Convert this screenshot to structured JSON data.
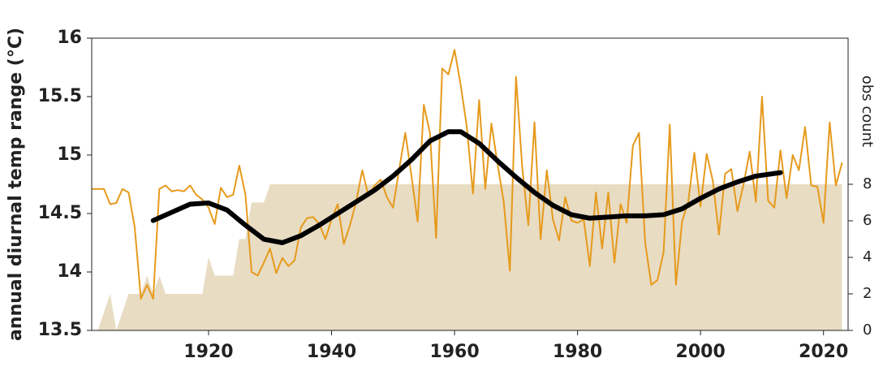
{
  "chart_data": {
    "type": "line",
    "ylabel": "annual diurnal temp range (°C)",
    "y2label": "obs count",
    "xlim": [
      1901,
      2024
    ],
    "xticks": [
      1920,
      1940,
      1960,
      1980,
      2000,
      2020
    ],
    "ylim": [
      13.5,
      16
    ],
    "yticks": [
      13.5,
      14,
      14.5,
      15,
      15.5,
      16
    ],
    "y2lim": [
      0,
      16
    ],
    "y2ticks": [
      0,
      2,
      4,
      6,
      8
    ],
    "series": [
      {
        "type": "area",
        "axis": "y2",
        "color": "#e8dcc3",
        "x": [
          1901,
          1902,
          1903,
          1904,
          1905,
          1906,
          1907,
          1908,
          1909,
          1910,
          1911,
          1912,
          1913,
          1914,
          1915,
          1916,
          1917,
          1918,
          1919,
          1920,
          1921,
          1922,
          1923,
          1924,
          1925,
          1926,
          1927,
          1928,
          1929,
          1930,
          1931,
          1932,
          1933,
          1934,
          1935,
          1936,
          1937,
          1938,
          1939,
          1940,
          1941,
          1942,
          1943,
          1944,
          1945,
          1946,
          1947,
          1948,
          1949,
          1950,
          1951,
          1952,
          1953,
          1954,
          1955,
          1956,
          1957,
          1958,
          1959,
          1960,
          1961,
          1962,
          1963,
          1964,
          1965,
          1966,
          1967,
          1968,
          1969,
          1970,
          1971,
          1972,
          1973,
          1974,
          1975,
          1976,
          1977,
          1978,
          1979,
          1980,
          1981,
          1982,
          1983,
          1984,
          1985,
          1986,
          1987,
          1988,
          1989,
          1990,
          1991,
          1992,
          1993,
          1994,
          1995,
          1996,
          1997,
          1998,
          1999,
          2000,
          2001,
          2002,
          2003,
          2004,
          2005,
          2006,
          2007,
          2008,
          2009,
          2010,
          2011,
          2012,
          2013,
          2014,
          2015,
          2016,
          2017,
          2018,
          2019,
          2020,
          2021,
          2022,
          2023
        ],
        "values": [
          null,
          0,
          1,
          2,
          0,
          1,
          2,
          2,
          2,
          3,
          2,
          3,
          2,
          2,
          2,
          2,
          2,
          2,
          2,
          4,
          3,
          3,
          3,
          3,
          5,
          5,
          7,
          7,
          7,
          8,
          8,
          8,
          8,
          8,
          8,
          8,
          8,
          8,
          8,
          8,
          8,
          8,
          8,
          8,
          8,
          8,
          8,
          8,
          8,
          8,
          8,
          8,
          8,
          8,
          8,
          8,
          8,
          8,
          8,
          8,
          8,
          8,
          8,
          8,
          8,
          8,
          8,
          8,
          8,
          8,
          8,
          8,
          8,
          8,
          8,
          8,
          8,
          8,
          8,
          8,
          8,
          8,
          8,
          8,
          8,
          8,
          8,
          8,
          8,
          8,
          8,
          8,
          8,
          8,
          8,
          8,
          8,
          8,
          8,
          8,
          8,
          8,
          8,
          8,
          8,
          8,
          8,
          8,
          8,
          8,
          8,
          8,
          8,
          8,
          8,
          8,
          8,
          8,
          8,
          8,
          8,
          8,
          8
        ]
      },
      {
        "type": "line",
        "color": "#e69a1c",
        "x": [
          1901,
          1902,
          1903,
          1904,
          1905,
          1906,
          1907,
          1908,
          1909,
          1910,
          1911,
          1912,
          1913,
          1914,
          1915,
          1916,
          1917,
          1918,
          1919,
          1920,
          1921,
          1922,
          1923,
          1924,
          1925,
          1926,
          1927,
          1928,
          1929,
          1930,
          1931,
          1932,
          1933,
          1934,
          1935,
          1936,
          1937,
          1938,
          1939,
          1940,
          1941,
          1942,
          1943,
          1944,
          1945,
          1946,
          1947,
          1948,
          1949,
          1950,
          1951,
          1952,
          1953,
          1954,
          1955,
          1956,
          1957,
          1958,
          1959,
          1960,
          1961,
          1962,
          1963,
          1964,
          1965,
          1966,
          1967,
          1968,
          1969,
          1970,
          1971,
          1972,
          1973,
          1974,
          1975,
          1976,
          1977,
          1978,
          1979,
          1980,
          1981,
          1982,
          1983,
          1984,
          1985,
          1986,
          1987,
          1988,
          1989,
          1990,
          1991,
          1992,
          1993,
          1994,
          1995,
          1996,
          1997,
          1998,
          1999,
          2000,
          2001,
          2002,
          2003,
          2004,
          2005,
          2006,
          2007,
          2008,
          2009,
          2010,
          2011,
          2012,
          2013,
          2014,
          2015,
          2016,
          2017,
          2018,
          2019,
          2020,
          2021,
          2022,
          2023
        ],
        "values": [
          14.71,
          14.71,
          14.71,
          14.58,
          14.59,
          14.71,
          14.68,
          14.38,
          13.77,
          13.89,
          13.77,
          14.71,
          14.74,
          14.69,
          14.7,
          14.69,
          14.74,
          14.66,
          14.62,
          14.55,
          14.41,
          14.72,
          14.64,
          14.66,
          14.91,
          14.66,
          14.0,
          13.97,
          14.08,
          14.2,
          13.99,
          14.12,
          14.05,
          14.1,
          14.38,
          14.46,
          14.47,
          14.41,
          14.28,
          14.45,
          14.58,
          14.24,
          14.4,
          14.6,
          14.87,
          14.65,
          14.74,
          14.79,
          14.64,
          14.55,
          14.88,
          15.19,
          14.82,
          14.43,
          15.43,
          15.19,
          14.29,
          15.74,
          15.69,
          15.9,
          15.6,
          15.24,
          14.67,
          15.47,
          14.71,
          15.27,
          14.92,
          14.6,
          14.01,
          15.67,
          14.9,
          14.4,
          15.28,
          14.28,
          14.87,
          14.45,
          14.27,
          14.64,
          14.44,
          14.42,
          14.45,
          14.05,
          14.68,
          14.2,
          14.68,
          14.08,
          14.58,
          14.42,
          15.08,
          15.19,
          14.25,
          13.89,
          13.93,
          14.17,
          15.26,
          13.89,
          14.43,
          14.6,
          15.02,
          14.56,
          15.01,
          14.78,
          14.32,
          14.84,
          14.88,
          14.52,
          14.75,
          15.03,
          14.6,
          15.5,
          14.61,
          14.55,
          15.04,
          14.63,
          15.0,
          14.87,
          15.24,
          14.74,
          14.73,
          14.42,
          15.28,
          14.74,
          14.93
        ]
      },
      {
        "type": "line",
        "color": "#000000",
        "x": [
          1911,
          1914,
          1917,
          1920,
          1923,
          1926,
          1929,
          1932,
          1935,
          1938,
          1941,
          1944,
          1947,
          1950,
          1953,
          1956,
          1959,
          1961,
          1964,
          1967,
          1970,
          1973,
          1976,
          1979,
          1982,
          1985,
          1988,
          1991,
          1994,
          1997,
          2000,
          2003,
          2006,
          2009,
          2013
        ],
        "values": [
          14.44,
          14.51,
          14.58,
          14.59,
          14.53,
          14.4,
          14.28,
          14.25,
          14.31,
          14.4,
          14.5,
          14.6,
          14.7,
          14.82,
          14.96,
          15.12,
          15.2,
          15.2,
          15.1,
          14.95,
          14.81,
          14.68,
          14.57,
          14.49,
          14.46,
          14.47,
          14.48,
          14.48,
          14.49,
          14.54,
          14.63,
          14.71,
          14.77,
          14.82,
          14.85
        ]
      }
    ]
  }
}
